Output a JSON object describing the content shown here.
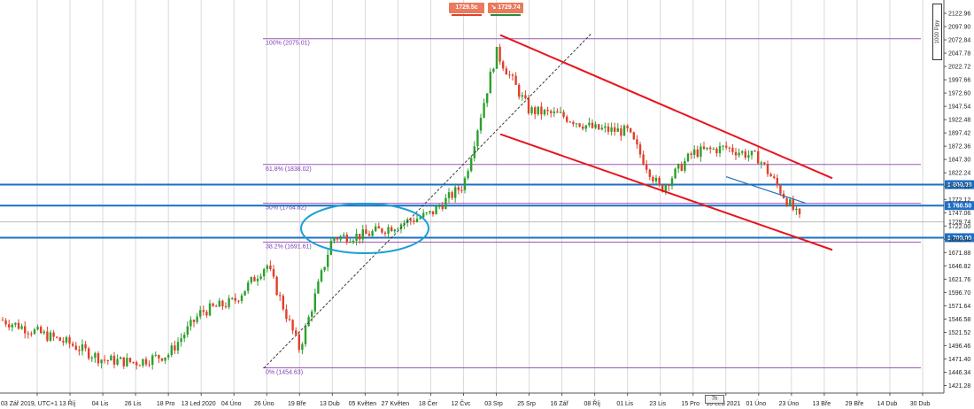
{
  "header": {
    "bid_label": "1729.5c",
    "ask_label": "1729.74",
    "bid_icon": "sell-arrow-icon",
    "ask_icon": "buy-arrow-icon",
    "bid_color": "#e97a5d",
    "ask_color": "#e97a5d",
    "bid_bar_color": "#e0402a",
    "ask_bar_color": "#2e8b3c"
  },
  "unit_label": "1000 Pipy",
  "scroll_tag": "7h",
  "colors": {
    "up_candle": "#2ca02c",
    "down_candle": "#e0402a",
    "channel": "#e8141c",
    "fib": "#9b59b6",
    "support": "#1e6fc2",
    "ellipse": "#1a9ed8",
    "trendline": "#3a3a3a",
    "grid": "#d9d9d9"
  },
  "chart_data": {
    "type": "candlestick",
    "symbol_timeframe": "",
    "ylim": [
      1410,
      2135
    ],
    "grid": true,
    "y_ticks": [
      "2122.96",
      "2097.90",
      "2072.84",
      "2047.78",
      "2022.72",
      "1997.66",
      "1972.60",
      "1947.54",
      "1922.48",
      "1897.42",
      "1872.36",
      "1847.30",
      "1822.24",
      "1797.18",
      "1772.12",
      "1747.06",
      "1722.00",
      "1696.94",
      "1671.88",
      "1646.82",
      "1621.76",
      "1596.70",
      "1571.64",
      "1546.58",
      "1521.52",
      "1496.46",
      "1471.40",
      "1446.34",
      "1421.28"
    ],
    "x_ticks": [
      "03 Zář 2019, UTC+1",
      "13 Říj",
      "04 Lis",
      "26 Lis",
      "18 Pro",
      "13 Led 2020",
      "04 Úno",
      "26 Úno",
      "19 Bře",
      "13 Dub",
      "05 Květen",
      "27 Květen",
      "18 Čer",
      "12 Čvc",
      "03 Srp",
      "25 Srp",
      "16 Zář",
      "08 Říj",
      "01 Lis",
      "23 Lis",
      "15 Pro",
      "10 Led 2021",
      "01 Úno",
      "23 Úno",
      "13 Bře",
      "29 Bře",
      "14 Dub",
      "30 Dub"
    ],
    "fibonacci": [
      {
        "label": "100% (2075.01)",
        "value": 2075.01
      },
      {
        "label": "61.8% (1838.02)",
        "value": 1838.02
      },
      {
        "label": "50% (1764.82)",
        "value": 1764.82
      },
      {
        "label": "38.2% (1691.61)",
        "value": 1691.61
      },
      {
        "label": "0% (1454.63)",
        "value": 1454.63
      }
    ],
    "horizontal_levels": [
      {
        "label": "1 800.00",
        "value": 1800.0
      },
      {
        "label": "1 760.50",
        "value": 1760.5
      },
      {
        "label": "1 700.00",
        "value": 1700.0
      }
    ],
    "current_price": {
      "label": "1729.74",
      "value": 1729.74
    },
    "channel_upper": [
      [
        "03 Srp",
        2080
      ],
      [
        "23 Úno",
        1810
      ]
    ],
    "channel_lower": [
      [
        "03 Srp",
        1900
      ],
      [
        "23 Úno",
        1670
      ]
    ],
    "trend_support": [
      [
        "19 Bře",
        1460
      ],
      [
        "03 Srp",
        2080
      ]
    ],
    "close_series": [
      {
        "date": "03 Zář 2019",
        "close": 1545
      },
      {
        "date": "13 Říj",
        "close": 1500
      },
      {
        "date": "04 Lis",
        "close": 1470
      },
      {
        "date": "26 Lis",
        "close": 1465
      },
      {
        "date": "18 Pro",
        "close": 1480
      },
      {
        "date": "13 Led 2020",
        "close": 1560
      },
      {
        "date": "04 Úno",
        "close": 1580
      },
      {
        "date": "26 Úno",
        "close": 1650
      },
      {
        "date": "19 Bře",
        "close": 1490
      },
      {
        "date": "13 Dub",
        "close": 1700
      },
      {
        "date": "05 Květen",
        "close": 1705
      },
      {
        "date": "27 Květen",
        "close": 1725
      },
      {
        "date": "18 Čer",
        "close": 1745
      },
      {
        "date": "12 Čvc",
        "close": 1800
      },
      {
        "date": "03 Srp",
        "close": 2050
      },
      {
        "date": "25 Srp",
        "close": 1940
      },
      {
        "date": "16 Zář",
        "close": 1930
      },
      {
        "date": "08 Říj",
        "close": 1905
      },
      {
        "date": "01 Lis",
        "close": 1900
      },
      {
        "date": "23 Lis",
        "close": 1790
      },
      {
        "date": "15 Pro",
        "close": 1860
      },
      {
        "date": "10 Led 2021",
        "close": 1870
      },
      {
        "date": "01 Úno",
        "close": 1850
      },
      {
        "date": "23 Úno",
        "close": 1730
      }
    ]
  }
}
